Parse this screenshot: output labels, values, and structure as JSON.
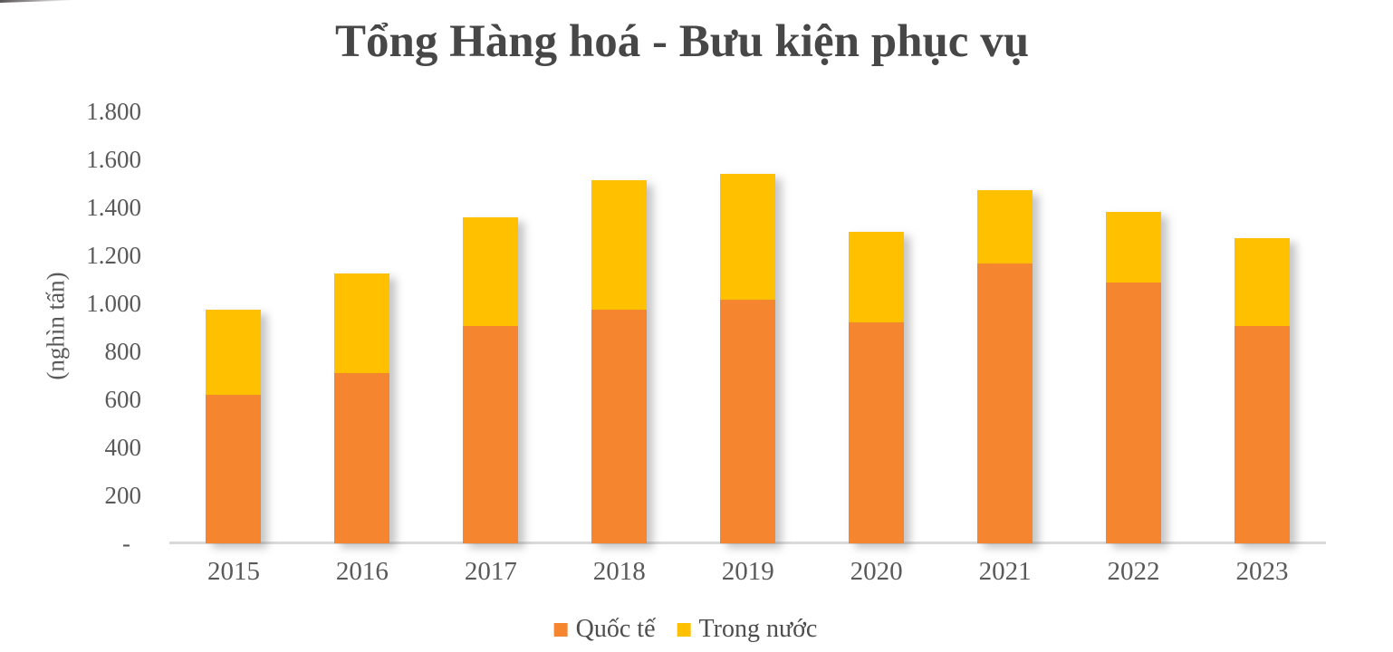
{
  "title": "Tổng Hàng hoá - Bưu kiện phục vụ",
  "y_axis_title": "(nghìn tấn)",
  "colors": {
    "international": "#F5852F",
    "domestic": "#FFC000",
    "title_text": "#474747",
    "axis_text": "#595959",
    "axis_line": "#D9D9D9"
  },
  "y_ticks": [
    {
      "value": 1800,
      "label": "1.800"
    },
    {
      "value": 1600,
      "label": "1.600"
    },
    {
      "value": 1400,
      "label": "1.400"
    },
    {
      "value": 1200,
      "label": "1.200"
    },
    {
      "value": 1000,
      "label": "1.000"
    },
    {
      "value": 800,
      "label": "800"
    },
    {
      "value": 600,
      "label": "600"
    },
    {
      "value": 400,
      "label": "400"
    },
    {
      "value": 200,
      "label": "200"
    },
    {
      "value": 0,
      "label": "-"
    }
  ],
  "chart_data": {
    "type": "bar",
    "stacked": true,
    "title": "Tổng Hàng hoá - Bưu kiện phục vụ",
    "ylabel": "(nghìn tấn)",
    "xlabel": "",
    "ylim": [
      0,
      1800
    ],
    "ytick_step": 200,
    "grid": false,
    "legend_position": "bottom",
    "categories": [
      "2015",
      "2016",
      "2017",
      "2018",
      "2019",
      "2020",
      "2021",
      "2022",
      "2023"
    ],
    "series": [
      {
        "name": "Quốc tế",
        "color_key": "international",
        "values": [
          620,
          710,
          905,
          975,
          1015,
          920,
          1165,
          1085,
          905
        ]
      },
      {
        "name": "Trong nước",
        "color_key": "domestic",
        "values": [
          355,
          415,
          455,
          540,
          525,
          380,
          305,
          295,
          365
        ]
      }
    ]
  }
}
